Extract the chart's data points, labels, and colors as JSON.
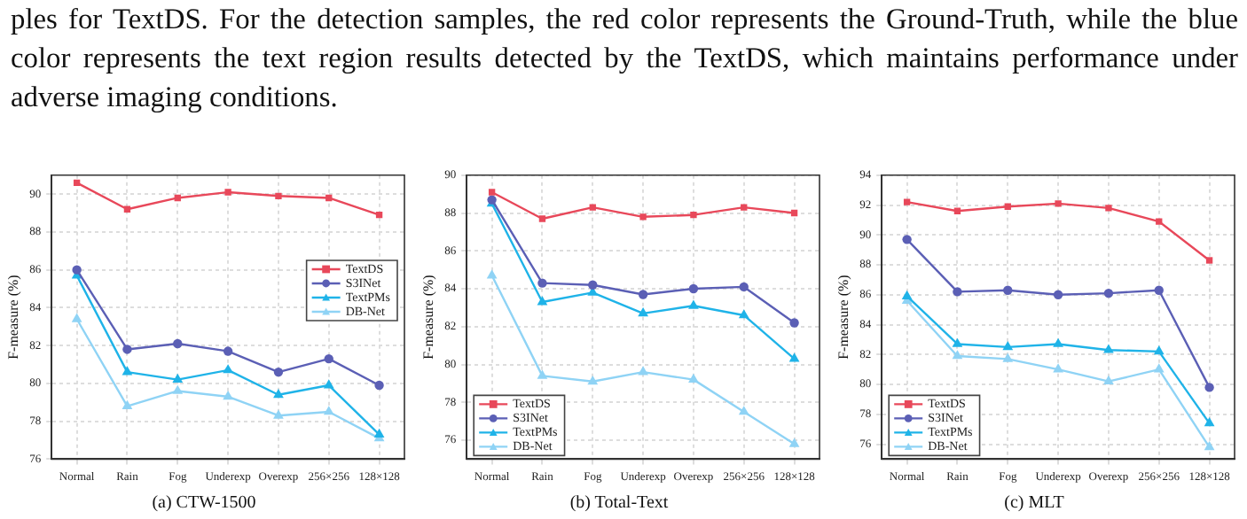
{
  "chart_data": [
    {
      "type": "line",
      "title": "(a) CTW-1500",
      "ylabel": "F-measure (%)",
      "annotations": [
        "ples for TextDS. For the detection samples, the red color represents the Ground-Truth, while the blue color represents the text region results detected by the TextDS, which maintains performance under adverse imaging conditions."
      ],
      "categories": [
        "Normal",
        "Rain",
        "Fog",
        "Underexp",
        "Overexp",
        "256×256",
        "128×128"
      ],
      "ylim": [
        76,
        91
      ],
      "yticks": [
        76,
        78,
        80,
        82,
        84,
        86,
        88,
        90
      ],
      "grid": true,
      "legend": "right",
      "line_style": "solid",
      "series": [
        {
          "name": "TextDS",
          "color": "#e8485a",
          "marker": "square",
          "values": [
            90.6,
            89.2,
            89.8,
            90.1,
            89.9,
            89.8,
            88.9
          ]
        },
        {
          "name": "S3INet",
          "color": "#5b5fb5",
          "marker": "circle",
          "values": [
            86.0,
            81.8,
            82.1,
            81.7,
            80.6,
            81.3,
            79.9
          ]
        },
        {
          "name": "TextPMs",
          "color": "#1fb3e8",
          "marker": "triangle",
          "values": [
            85.7,
            80.6,
            80.2,
            80.7,
            79.4,
            79.9,
            77.3
          ]
        },
        {
          "name": "DB-Net",
          "color": "#8fd3f5",
          "marker": "triangle",
          "values": [
            83.4,
            78.8,
            79.6,
            79.3,
            78.3,
            78.5,
            77.1
          ]
        }
      ]
    },
    {
      "type": "line",
      "title": "(b) Total-Text",
      "ylabel": "F-measure (%)",
      "categories": [
        "Normal",
        "Rain",
        "Fog",
        "Underexp",
        "Overexp",
        "256×256",
        "128×128"
      ],
      "ylim": [
        75,
        90
      ],
      "yticks": [
        76,
        78,
        80,
        82,
        84,
        86,
        88,
        90
      ],
      "grid": true,
      "legend": "bottom left",
      "line_style": "solid",
      "series": [
        {
          "name": "TextDS",
          "color": "#e8485a",
          "marker": "square",
          "values": [
            89.1,
            87.7,
            88.3,
            87.8,
            87.9,
            88.3,
            88.0
          ]
        },
        {
          "name": "S3INet",
          "color": "#5b5fb5",
          "marker": "circle",
          "values": [
            88.7,
            84.3,
            84.2,
            83.7,
            84.0,
            84.1,
            82.2
          ]
        },
        {
          "name": "TextPMs",
          "color": "#1fb3e8",
          "marker": "triangle",
          "values": [
            88.5,
            83.3,
            83.8,
            82.7,
            83.1,
            82.6,
            80.3
          ]
        },
        {
          "name": "DB-Net",
          "color": "#8fd3f5",
          "marker": "triangle",
          "values": [
            84.7,
            79.4,
            79.1,
            79.6,
            79.2,
            77.5,
            75.8
          ]
        }
      ]
    },
    {
      "type": "line",
      "title": "(c) MLT",
      "ylabel": "F-measure (%)",
      "categories": [
        "Normal",
        "Rain",
        "Fog",
        "Underexp",
        "Overexp",
        "256×256",
        "128×128"
      ],
      "ylim": [
        75,
        94
      ],
      "yticks": [
        76,
        78,
        80,
        82,
        84,
        86,
        88,
        90,
        92,
        94
      ],
      "grid": true,
      "legend": "bottom left",
      "line_style": "solid",
      "series": [
        {
          "name": "TextDS",
          "color": "#e8485a",
          "marker": "square",
          "values": [
            92.2,
            91.6,
            91.9,
            92.1,
            91.8,
            90.9,
            88.3
          ]
        },
        {
          "name": "S3INet",
          "color": "#5b5fb5",
          "marker": "circle",
          "values": [
            89.7,
            86.2,
            86.3,
            86.0,
            86.1,
            86.3,
            79.8
          ]
        },
        {
          "name": "TextPMs",
          "color": "#1fb3e8",
          "marker": "triangle",
          "values": [
            85.9,
            82.7,
            82.5,
            82.7,
            82.3,
            82.2,
            77.4
          ]
        },
        {
          "name": "DB-Net",
          "color": "#8fd3f5",
          "marker": "triangle",
          "values": [
            85.6,
            81.9,
            81.7,
            81.0,
            80.2,
            81.0,
            75.8
          ]
        }
      ]
    }
  ]
}
